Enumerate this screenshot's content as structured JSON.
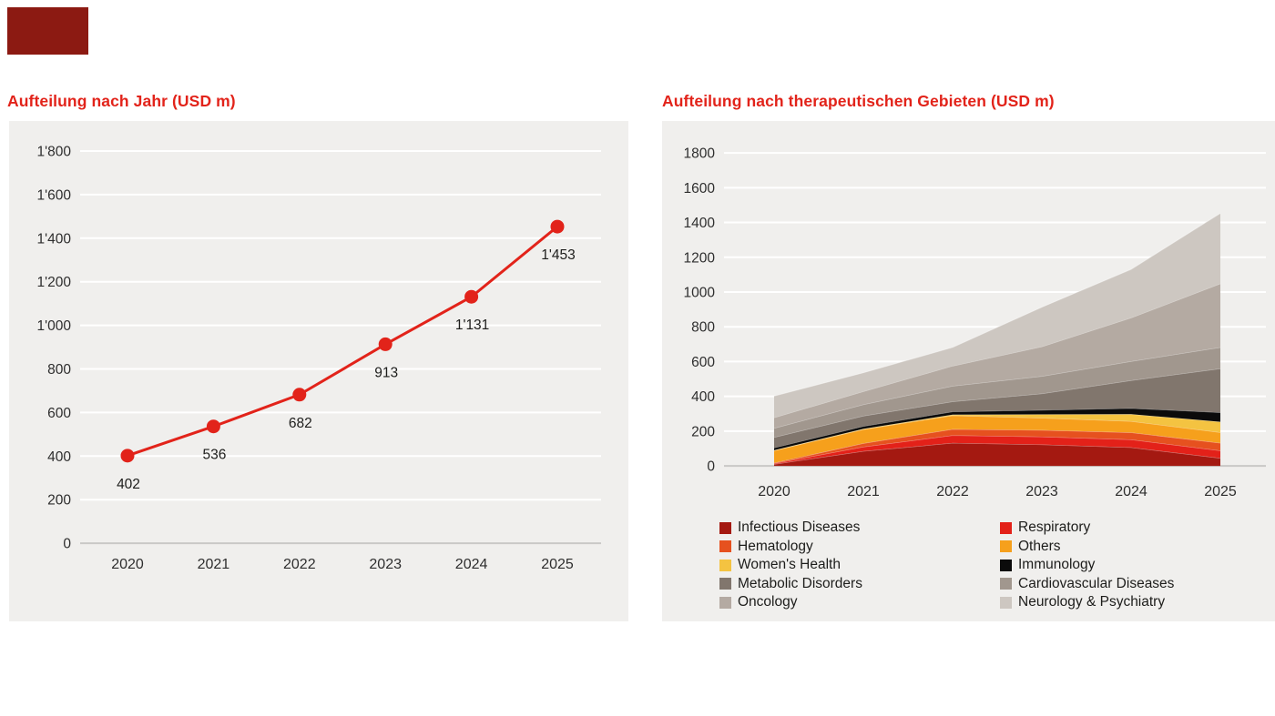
{
  "page": {
    "logo_block_color": "#8c1a12",
    "panel_background": "#f0efed",
    "gridline_color": "#ffffff",
    "zero_line_color": "#c9c8c6",
    "axis_text_color": "#2e2e2e",
    "label_text_color": "#1d1d1b",
    "accent_red": "#e2231a"
  },
  "chart_data": [
    {
      "type": "line",
      "title": "Aufteilung nach Jahr (USD m)",
      "categories": [
        "2020",
        "2021",
        "2022",
        "2023",
        "2024",
        "2025"
      ],
      "values": [
        402,
        536,
        682,
        913,
        1131,
        1453
      ],
      "value_labels": [
        "402",
        "536",
        "682",
        "913",
        "1'131",
        "1'453"
      ],
      "y_tick_labels": [
        "1'800",
        "1'600",
        "1'400",
        "1'200",
        "1'000",
        "800",
        "600",
        "400",
        "200",
        "0"
      ],
      "ylim": [
        0,
        1800
      ],
      "y_step": 200,
      "grid": "on",
      "line_color": "#e2231a",
      "marker": "circle"
    },
    {
      "type": "area",
      "title": "Aufteilung nach therapeutischen Gebieten (USD m)",
      "categories": [
        "2020",
        "2021",
        "2022",
        "2023",
        "2024",
        "2025"
      ],
      "y_tick_labels": [
        "1800",
        "1600",
        "1400",
        "1200",
        "1000",
        "800",
        "600",
        "400",
        "200",
        "0"
      ],
      "ylim": [
        0,
        1800
      ],
      "y_step": 200,
      "grid": "on",
      "stacking": "stacked, bottom to top in series order",
      "legend_position": "bottom, two columns, row-major",
      "series": [
        {
          "name": "Infectious Diseases",
          "color": "#a41911",
          "values": [
            10,
            85,
            132,
            123,
            107,
            45
          ]
        },
        {
          "name": "Respiratory",
          "color": "#e32119",
          "values": [
            4,
            25,
            44,
            45,
            45,
            43
          ]
        },
        {
          "name": "Hematology",
          "color": "#e6511f",
          "values": [
            4,
            20,
            35,
            38,
            40,
            44
          ]
        },
        {
          "name": "Others",
          "color": "#f6a01c",
          "values": [
            70,
            80,
            79,
            70,
            65,
            61
          ]
        },
        {
          "name": "Women's Health",
          "color": "#f4c341",
          "values": [
            2,
            3,
            5,
            20,
            40,
            61
          ]
        },
        {
          "name": "Immunology",
          "color": "#0b0b0b",
          "values": [
            14,
            15,
            17,
            25,
            35,
            53
          ]
        },
        {
          "name": "Metabolic Disorders",
          "color": "#81766d",
          "values": [
            61,
            60,
            58,
            95,
            160,
            253
          ]
        },
        {
          "name": "Cardiovascular Diseases",
          "color": "#a1978e",
          "values": [
            52,
            65,
            90,
            100,
            110,
            122
          ]
        },
        {
          "name": "Oncology",
          "color": "#b4aaa2",
          "values": [
            61,
            75,
            115,
            170,
            250,
            366
          ]
        },
        {
          "name": "Neurology & Psychiatry",
          "color": "#cdc7c1",
          "values": [
            124,
            108,
            107,
            227,
            279,
            405
          ]
        }
      ],
      "totals": [
        402,
        536,
        682,
        913,
        1131,
        1453
      ]
    }
  ]
}
